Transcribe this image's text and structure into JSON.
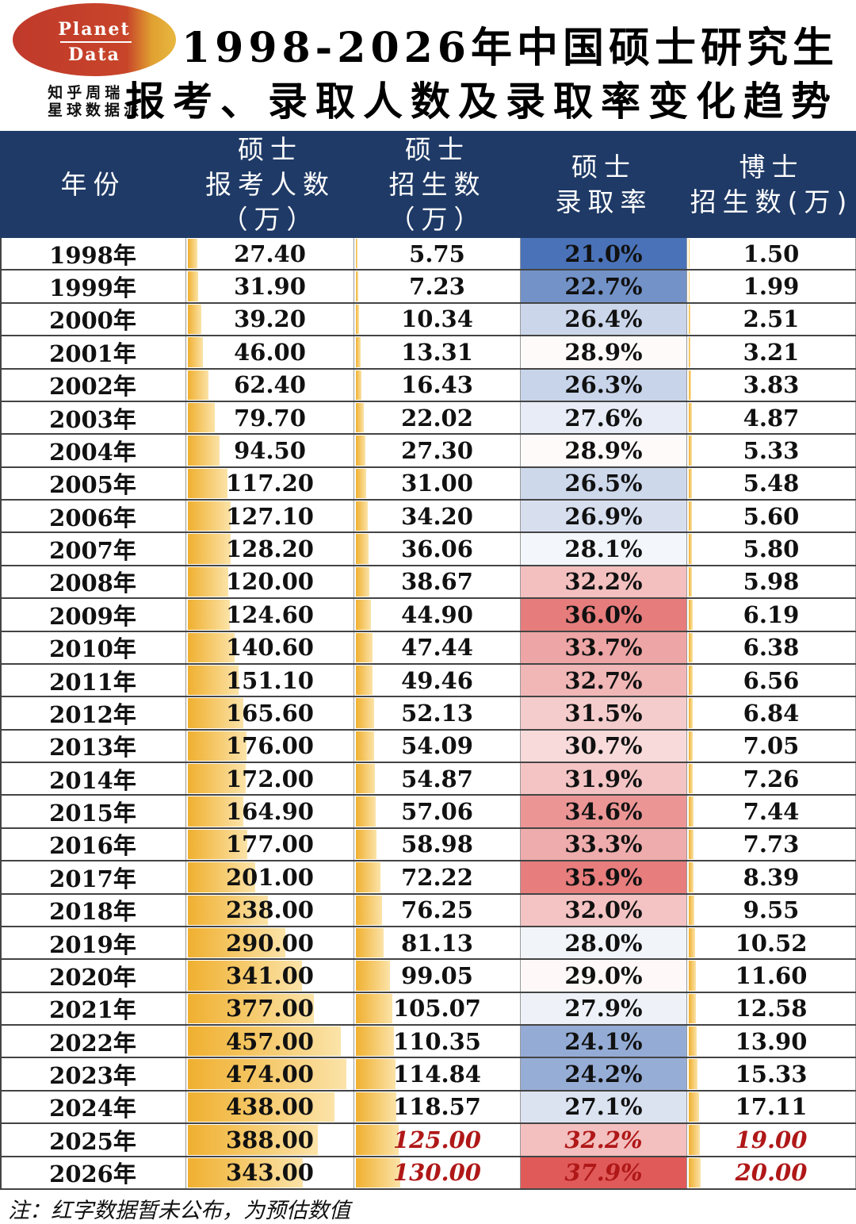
{
  "logo": {
    "line1": "Planet",
    "line2": "Data"
  },
  "brand": {
    "line1": "知乎周瑞 |",
    "line2": "星球数据派"
  },
  "title": {
    "line1": "1998-2026年中国硕士研究生",
    "line2": "报考、录取人数及录取率变化趋势"
  },
  "chart_data": {
    "type": "table",
    "columns": [
      {
        "lines": [
          "年份"
        ]
      },
      {
        "lines": [
          "硕士",
          "报考人数",
          "（万）"
        ]
      },
      {
        "lines": [
          "硕士",
          "招生数",
          "（万）"
        ]
      },
      {
        "lines": [
          "硕士",
          "录取率"
        ]
      },
      {
        "lines": [
          "博士",
          "招生数(万)"
        ]
      }
    ],
    "rows": [
      {
        "year": "1998年",
        "apply": "27.40",
        "enroll": "5.75",
        "rate": "21.0%",
        "phd": "1.50"
      },
      {
        "year": "1999年",
        "apply": "31.90",
        "enroll": "7.23",
        "rate": "22.7%",
        "phd": "1.99"
      },
      {
        "year": "2000年",
        "apply": "39.20",
        "enroll": "10.34",
        "rate": "26.4%",
        "phd": "2.51"
      },
      {
        "year": "2001年",
        "apply": "46.00",
        "enroll": "13.31",
        "rate": "28.9%",
        "phd": "3.21"
      },
      {
        "year": "2002年",
        "apply": "62.40",
        "enroll": "16.43",
        "rate": "26.3%",
        "phd": "3.83"
      },
      {
        "year": "2003年",
        "apply": "79.70",
        "enroll": "22.02",
        "rate": "27.6%",
        "phd": "4.87"
      },
      {
        "year": "2004年",
        "apply": "94.50",
        "enroll": "27.30",
        "rate": "28.9%",
        "phd": "5.33"
      },
      {
        "year": "2005年",
        "apply": "117.20",
        "enroll": "31.00",
        "rate": "26.5%",
        "phd": "5.48"
      },
      {
        "year": "2006年",
        "apply": "127.10",
        "enroll": "34.20",
        "rate": "26.9%",
        "phd": "5.60"
      },
      {
        "year": "2007年",
        "apply": "128.20",
        "enroll": "36.06",
        "rate": "28.1%",
        "phd": "5.80"
      },
      {
        "year": "2008年",
        "apply": "120.00",
        "enroll": "38.67",
        "rate": "32.2%",
        "phd": "5.98"
      },
      {
        "year": "2009年",
        "apply": "124.60",
        "enroll": "44.90",
        "rate": "36.0%",
        "phd": "6.19"
      },
      {
        "year": "2010年",
        "apply": "140.60",
        "enroll": "47.44",
        "rate": "33.7%",
        "phd": "6.38"
      },
      {
        "year": "2011年",
        "apply": "151.10",
        "enroll": "49.46",
        "rate": "32.7%",
        "phd": "6.56"
      },
      {
        "year": "2012年",
        "apply": "165.60",
        "enroll": "52.13",
        "rate": "31.5%",
        "phd": "6.84"
      },
      {
        "year": "2013年",
        "apply": "176.00",
        "enroll": "54.09",
        "rate": "30.7%",
        "phd": "7.05"
      },
      {
        "year": "2014年",
        "apply": "172.00",
        "enroll": "54.87",
        "rate": "31.9%",
        "phd": "7.26"
      },
      {
        "year": "2015年",
        "apply": "164.90",
        "enroll": "57.06",
        "rate": "34.6%",
        "phd": "7.44"
      },
      {
        "year": "2016年",
        "apply": "177.00",
        "enroll": "58.98",
        "rate": "33.3%",
        "phd": "7.73"
      },
      {
        "year": "2017年",
        "apply": "201.00",
        "enroll": "72.22",
        "rate": "35.9%",
        "phd": "8.39"
      },
      {
        "year": "2018年",
        "apply": "238.00",
        "enroll": "76.25",
        "rate": "32.0%",
        "phd": "9.55"
      },
      {
        "year": "2019年",
        "apply": "290.00",
        "enroll": "81.13",
        "rate": "28.0%",
        "phd": "10.52"
      },
      {
        "year": "2020年",
        "apply": "341.00",
        "enroll": "99.05",
        "rate": "29.0%",
        "phd": "11.60"
      },
      {
        "year": "2021年",
        "apply": "377.00",
        "enroll": "105.07",
        "rate": "27.9%",
        "phd": "12.58"
      },
      {
        "year": "2022年",
        "apply": "457.00",
        "enroll": "110.35",
        "rate": "24.1%",
        "phd": "13.90"
      },
      {
        "year": "2023年",
        "apply": "474.00",
        "enroll": "114.84",
        "rate": "24.2%",
        "phd": "15.33"
      },
      {
        "year": "2024年",
        "apply": "438.00",
        "enroll": "118.57",
        "rate": "27.1%",
        "phd": "17.11"
      },
      {
        "year": "2025年",
        "apply": "388.00",
        "enroll": "125.00",
        "rate": "32.2%",
        "phd": "19.00",
        "estimated": [
          "enroll",
          "rate",
          "phd"
        ]
      },
      {
        "year": "2026年",
        "apply": "343.00",
        "enroll": "130.00",
        "rate": "37.9%",
        "phd": "20.00",
        "estimated": [
          "enroll",
          "rate",
          "phd"
        ]
      }
    ]
  },
  "colors": {
    "header_bg": "#1f3a66",
    "bar": "#f0b030",
    "rate_low": "#4a72b8",
    "rate_high": "#e05a5a",
    "estimate_text": "#b01818"
  },
  "note": "注：红字数据暂未公布，为预估数值"
}
